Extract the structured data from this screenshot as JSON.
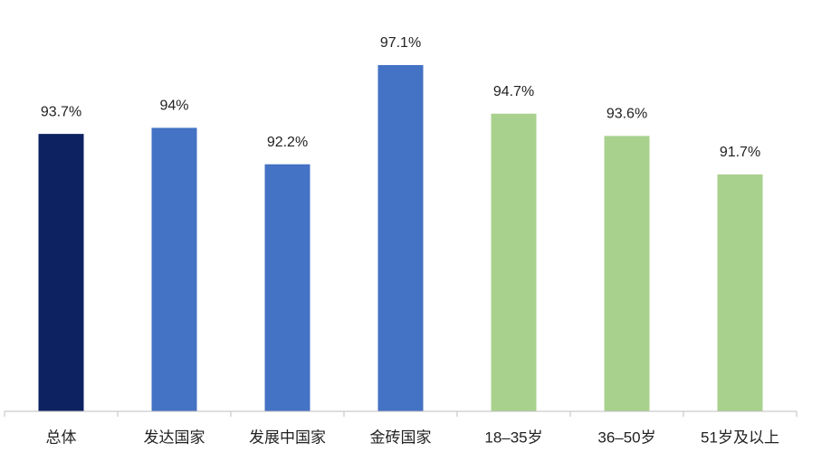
{
  "chart_data": {
    "type": "bar",
    "categories": [
      "总体",
      "发达国家",
      "发展中国家",
      "金砖国家",
      "18–35岁",
      "36–50岁",
      "51岁及以上"
    ],
    "values": [
      93.7,
      94,
      92.2,
      97.1,
      94.7,
      93.6,
      91.7
    ],
    "value_labels": [
      "93.7%",
      "94%",
      "92.2%",
      "97.1%",
      "94.7%",
      "93.6%",
      "91.7%"
    ],
    "colors": [
      "#0d2260",
      "#4472c4",
      "#4472c4",
      "#4472c4",
      "#a9d18e",
      "#a9d18e",
      "#a9d18e"
    ],
    "ylim": [
      80,
      100
    ]
  }
}
